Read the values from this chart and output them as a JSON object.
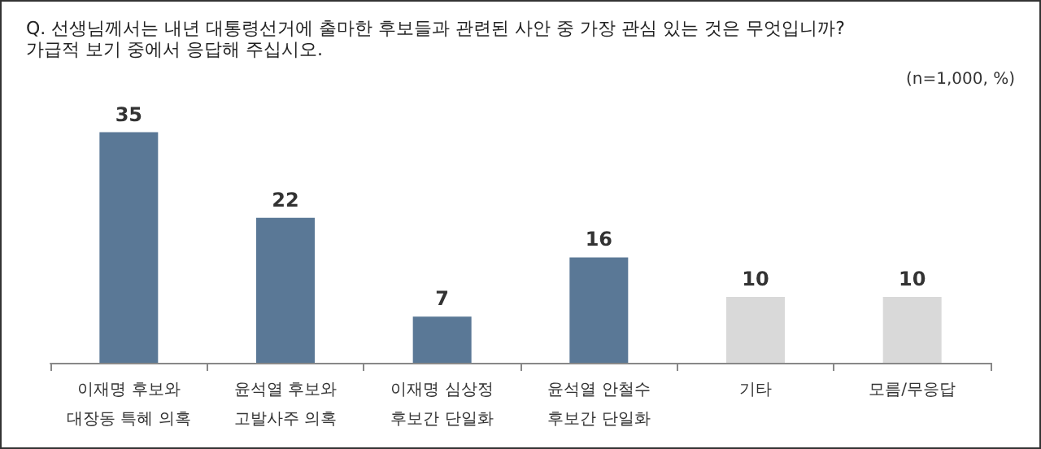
{
  "chart_data": {
    "type": "bar",
    "title": "Q. 선생님께서는 내년 대통령선거에 출마한 후보들과 관련된 사안 중 가장 관심 있는 것은 무엇입니까?",
    "subtitle": "가급적 보기 중에서 응답해 주십시오.",
    "annotations": [
      "(n=1,000, %)"
    ],
    "categories": [
      "이재명 후보와\n대장동 특혜 의혹",
      "윤석열 후보와\n고발사주 의혹",
      "이재명 심상정\n후보간 단일화",
      "윤석열 안철수\n후보간 단일화",
      "기타",
      "모름/무응답"
    ],
    "values": [
      35,
      22,
      7,
      16,
      10,
      10
    ],
    "colors": [
      "#5a7896",
      "#5a7896",
      "#5a7896",
      "#5a7896",
      "#d9d9d9",
      "#d9d9d9"
    ],
    "data_labels": true
  }
}
